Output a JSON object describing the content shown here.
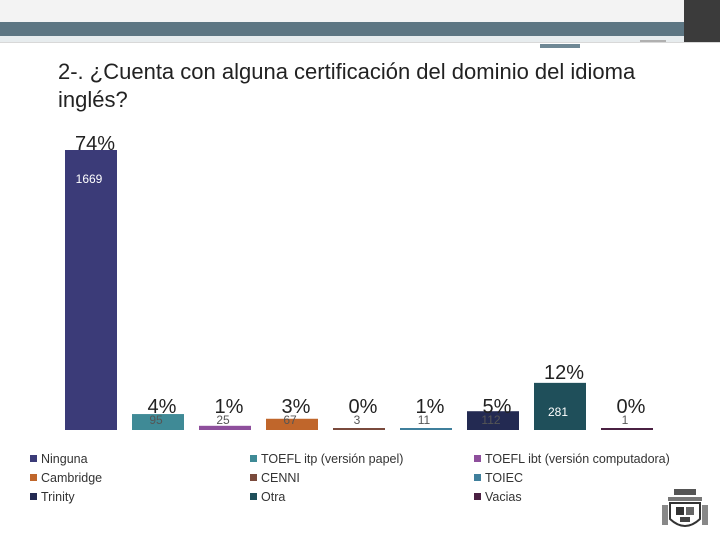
{
  "slide": {
    "title": "2-. ¿Cuenta con alguna certificación del dominio del idioma inglés?"
  },
  "chart_data": {
    "type": "bar",
    "categories": [
      "Ninguna",
      "TOEFL itp (versión papel)",
      "TOEFL ibt (versión computadora)",
      "Cambridge",
      "CENNI",
      "TOIEC",
      "Trinity",
      "Otra",
      "Vacias"
    ],
    "values": [
      1669,
      95,
      25,
      67,
      3,
      11,
      112,
      281,
      1
    ],
    "percent_labels": [
      "74%",
      "4%",
      "1%",
      "3%",
      "0%",
      "1%",
      "5%",
      "12%",
      "0%"
    ],
    "colors": [
      "#3b3b78",
      "#3f8a96",
      "#8e4f9c",
      "#c0662b",
      "#7a4a3c",
      "#3f7f9c",
      "#232a52",
      "#1f4f5a",
      "#4a2042"
    ],
    "title": "2-. ¿Cuenta con alguna certificación del dominio del idioma inglés?",
    "xlabel": "",
    "ylabel": "",
    "ylim": [
      0,
      1669
    ],
    "grid": false,
    "legend": "bottom"
  },
  "legend": {
    "items": [
      {
        "label": "Ninguna",
        "color": "#3b3b78"
      },
      {
        "label": "TOEFL itp (versión papel)",
        "color": "#3f8a96"
      },
      {
        "label": "TOEFL ibt (versión computadora)",
        "color": "#8e4f9c"
      },
      {
        "label": "Cambridge",
        "color": "#c0662b"
      },
      {
        "label": "CENNI",
        "color": "#7a4a3c"
      },
      {
        "label": "TOIEC",
        "color": "#3f7f9c"
      },
      {
        "label": "Trinity",
        "color": "#232a52"
      },
      {
        "label": "Otra",
        "color": "#1f4f5a"
      },
      {
        "label": "Vacias",
        "color": "#4a2042"
      }
    ]
  }
}
